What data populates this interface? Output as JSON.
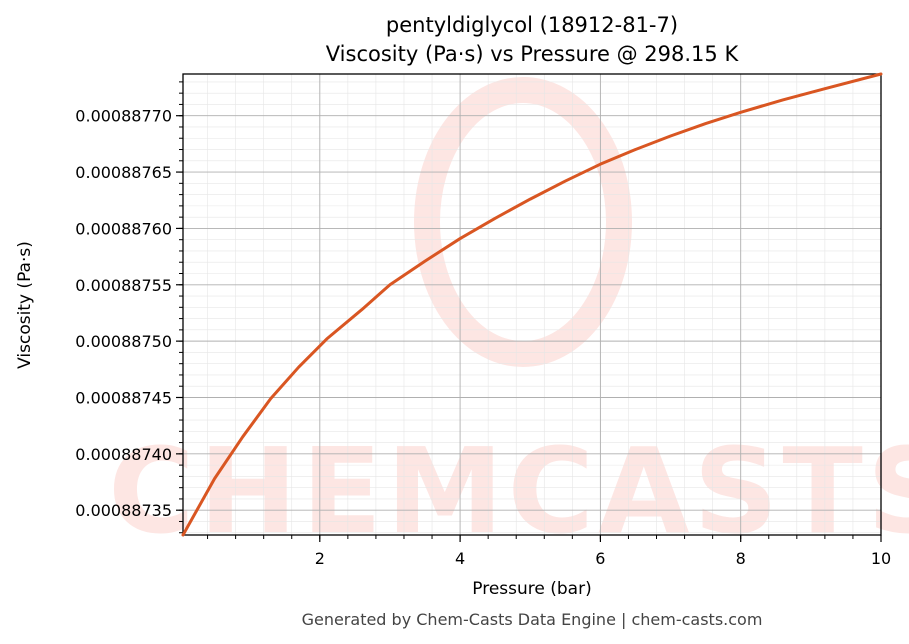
{
  "chart_data": {
    "type": "line",
    "title": "pentyldiglycol (18912-81-7)",
    "subtitle": "Viscosity (Pa·s) vs Pressure @ 298.15 K",
    "xlabel": "Pressure (bar)",
    "ylabel": "Viscosity (Pa·s)",
    "xlim": [
      0.05,
      10
    ],
    "ylim": [
      0.000887328,
      0.000887737
    ],
    "x_ticks": [
      2,
      4,
      6,
      8,
      10
    ],
    "x_tick_labels": [
      "2",
      "4",
      "6",
      "8",
      "10"
    ],
    "y_ticks": [
      0.00088735,
      0.0008874,
      0.00088745,
      0.0008875,
      0.00088755,
      0.0008876,
      0.00088765,
      0.0008877
    ],
    "y_tick_labels": [
      "0.00088735",
      "0.00088740",
      "0.00088745",
      "0.00088750",
      "0.00088755",
      "0.00088760",
      "0.00088765",
      "0.00088770"
    ],
    "grid": true,
    "series": [
      {
        "color": "#d95622",
        "x": [
          0.05,
          0.5,
          0.9,
          1.3,
          1.7,
          2.1,
          2.6,
          3.0,
          3.5,
          4.0,
          4.5,
          5.0,
          5.5,
          6.0,
          6.5,
          7.0,
          7.5,
          8.0,
          8.6,
          9.2,
          10.0
        ],
        "y": [
          0.000887328,
          0.000887378,
          0.000887415,
          0.000887449,
          0.000887477,
          0.000887502,
          0.000887528,
          0.00088755,
          0.000887571,
          0.000887591,
          0.000887609,
          0.000887626,
          0.000887642,
          0.000887657,
          0.00088767,
          0.000887682,
          0.000887693,
          0.000887703,
          0.000887714,
          0.000887724,
          0.000887737
        ]
      }
    ]
  },
  "footer": "Generated by Chem-Casts Data Engine | chem-casts.com",
  "watermark": "CHEMCASTS"
}
